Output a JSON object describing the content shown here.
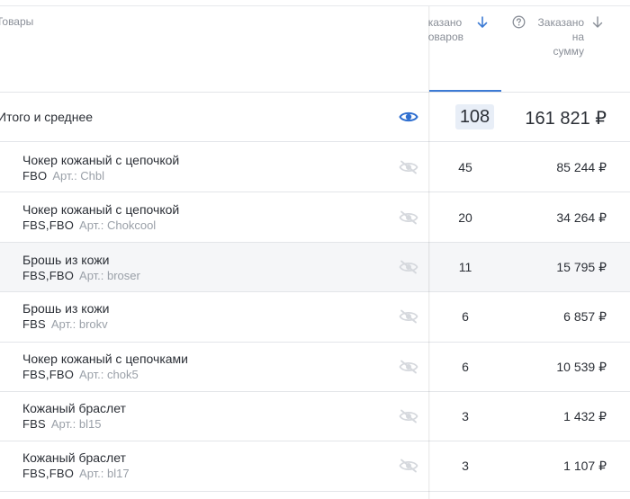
{
  "header": {
    "products_col": "Товары",
    "ordered_qty_col": [
      "казано",
      "оваров"
    ],
    "ordered_sum_col": [
      "Заказано",
      "на",
      "сумму"
    ]
  },
  "total": {
    "label": "Итого и среднее",
    "qty": "108",
    "sum": "161 821 ₽"
  },
  "rows": [
    {
      "name": "Чокер кожаный с цепочкой",
      "tags": "FBO",
      "article": "Арт.: Chbl",
      "qty": "45",
      "sum": "85 244 ₽"
    },
    {
      "name": "Чокер кожаный с цепочкой",
      "tags": "FBS,FBO",
      "article": "Арт.: Chokcool",
      "qty": "20",
      "sum": "34 264 ₽"
    },
    {
      "name": "Брошь из кожи",
      "tags": "FBS,FBO",
      "article": "Арт.: broser",
      "qty": "11",
      "sum": "15 795 ₽"
    },
    {
      "name": "Брошь из кожи",
      "tags": "FBS",
      "article": "Арт.: brokv",
      "qty": "6",
      "sum": "6 857 ₽"
    },
    {
      "name": "Чокер кожаный с цепочками",
      "tags": "FBS,FBO",
      "article": "Арт.: chok5",
      "qty": "6",
      "sum": "10 539 ₽"
    },
    {
      "name": "Кожаный браслет",
      "tags": "FBS",
      "article": "Арт.: bl15",
      "qty": "3",
      "sum": "1 432 ₽"
    },
    {
      "name": "Кожаный браслет",
      "tags": "FBS,FBO",
      "article": "Арт.: bl17",
      "qty": "3",
      "sum": "1 107 ₽"
    }
  ],
  "colors": {
    "accent": "#3d7bd4",
    "eye_active": "#2f6fd0",
    "eye_muted": "#d5d8dd"
  }
}
